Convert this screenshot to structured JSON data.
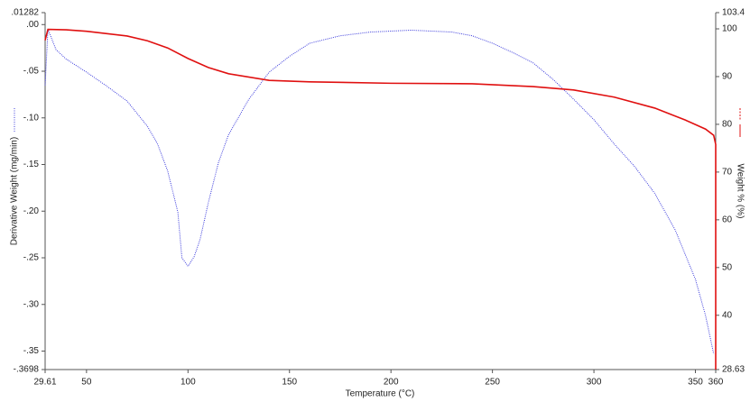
{
  "chart_data": {
    "type": "line",
    "x_label": "Temperature (°C)",
    "y_label": "Derivative Weight (mg/min)",
    "y2_label": "Weight % (%)",
    "xlim": [
      29.61,
      360
    ],
    "xticks": [
      29.61,
      50,
      100,
      150,
      200,
      250,
      300,
      350,
      360
    ],
    "ylim": [
      -0.3698,
      0.01282
    ],
    "yticks": [
      {
        "value": 0.01282,
        "label": ".01282"
      },
      {
        "value": 0,
        "label": ".00"
      },
      {
        "value": -0.05,
        "label": "-.05"
      },
      {
        "value": -0.1,
        "label": "-.10"
      },
      {
        "value": -0.15,
        "label": "-.15"
      },
      {
        "value": -0.2,
        "label": "-.20"
      },
      {
        "value": -0.25,
        "label": "-.25"
      },
      {
        "value": -0.3,
        "label": "-.30"
      },
      {
        "value": -0.35,
        "label": "-.35"
      },
      {
        "value": -0.3698,
        "label": "-.3698"
      }
    ],
    "y2lim": [
      28.63,
      103.4
    ],
    "y2ticks": [
      103.4,
      100,
      90,
      80,
      70,
      60,
      50,
      40,
      28.63
    ],
    "series": [
      {
        "color": "#3b3bdc",
        "dash": "dotted",
        "axis": "y",
        "x": [
          29.61,
          31,
          35,
          40,
          50,
          60,
          70,
          80,
          85,
          90,
          95,
          97,
          100,
          103,
          106,
          110,
          115,
          120,
          130,
          140,
          150,
          160,
          175,
          190,
          210,
          230,
          240,
          250,
          260,
          270,
          280,
          290,
          300,
          310,
          320,
          330,
          340,
          350,
          355,
          359
        ],
        "values": [
          -0.065,
          -0.005,
          -0.027,
          -0.037,
          -0.051,
          -0.066,
          -0.082,
          -0.109,
          -0.128,
          -0.157,
          -0.201,
          -0.25,
          -0.259,
          -0.249,
          -0.23,
          -0.191,
          -0.148,
          -0.118,
          -0.08,
          -0.051,
          -0.034,
          -0.02,
          -0.012,
          -0.008,
          -0.006,
          -0.008,
          -0.012,
          -0.02,
          -0.03,
          -0.041,
          -0.059,
          -0.08,
          -0.102,
          -0.128,
          -0.152,
          -0.181,
          -0.22,
          -0.273,
          -0.312,
          -0.353
        ]
      },
      {
        "color": "#e01010",
        "dash": "solid",
        "axis": "y2",
        "x": [
          29.61,
          31,
          40,
          50,
          70,
          80,
          90,
          100,
          110,
          120,
          140,
          160,
          200,
          240,
          270,
          290,
          310,
          330,
          345,
          355,
          359,
          360,
          360
        ],
        "values": [
          97.6,
          99.9,
          99.8,
          99.5,
          98.5,
          97.5,
          96.0,
          93.8,
          91.9,
          90.6,
          89.2,
          88.9,
          88.6,
          88.5,
          87.9,
          87.2,
          85.7,
          83.4,
          80.9,
          79.0,
          77.7,
          75.8,
          28.63
        ]
      }
    ]
  }
}
